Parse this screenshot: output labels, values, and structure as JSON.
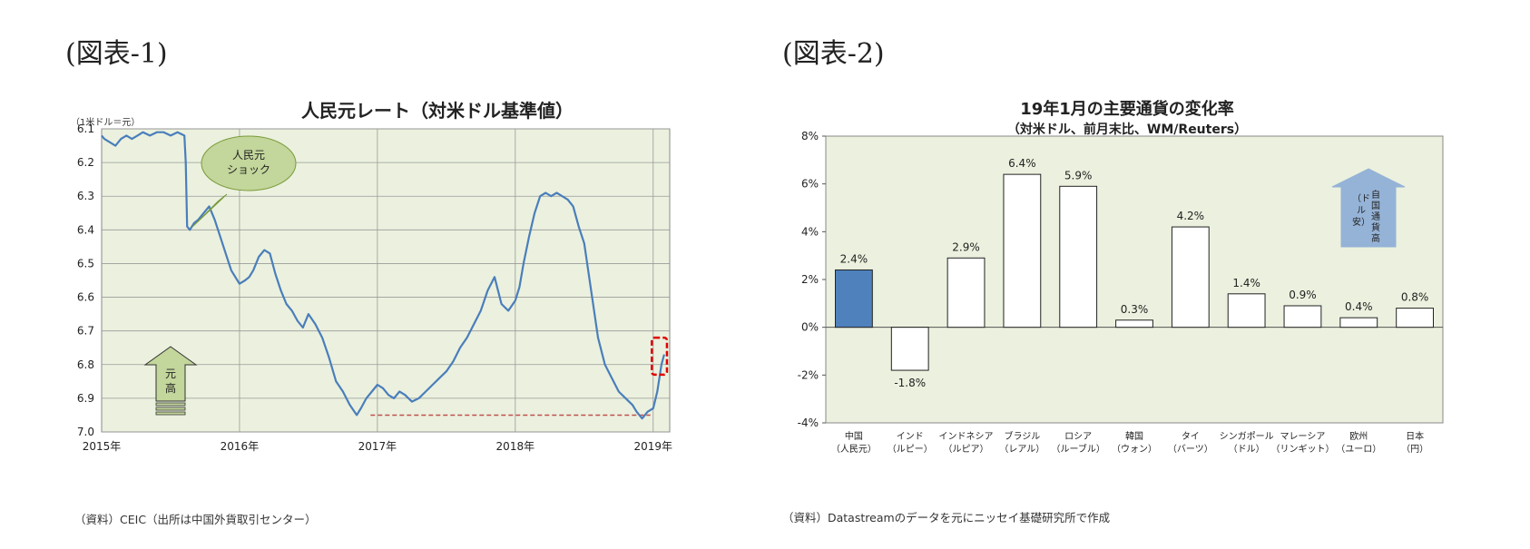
{
  "figure1": {
    "label": "(図表-1)",
    "title": "人民元レート（対米ドル基準値）",
    "unit": "（1米ドル＝元）",
    "source": "（資料）CEIC（出所は中国外貨取引センター）",
    "callout": [
      "人民元",
      "ショック"
    ],
    "arrow_label": [
      "元",
      "高"
    ],
    "colors": {
      "line": "#4a7ebb",
      "plot_bg": "#ebf1de",
      "callout_fill": "#c3d69b",
      "arrow_fill": "#c3d69b",
      "marker": "#e00000",
      "ref_line": "#c0504d"
    },
    "chart_data": {
      "type": "line",
      "x_ticks": [
        "2015年",
        "2016年",
        "2017年",
        "2018年",
        "2019年"
      ],
      "y_ticks": [
        "6.1",
        "6.2",
        "6.3",
        "6.4",
        "6.5",
        "6.6",
        "6.7",
        "6.8",
        "6.9",
        "7.0"
      ],
      "ylim": [
        6.1,
        7.0
      ],
      "y_inverted": true,
      "grid": true,
      "reference_line": {
        "y": 6.95,
        "from": 2016.95,
        "to": 2018.98
      },
      "highlight_box": {
        "x_from": 2018.99,
        "x_to": 2019.1,
        "y_from": 6.72,
        "y_to": 6.83
      },
      "series": [
        {
          "x": [
            2015.0,
            2015.02,
            2015.06,
            2015.1,
            2015.14,
            2015.18,
            2015.22,
            2015.26,
            2015.3,
            2015.35,
            2015.4,
            2015.45,
            2015.5,
            2015.55,
            2015.6,
            2015.61,
            2015.62,
            2015.64,
            2015.67,
            2015.7,
            2015.74,
            2015.78,
            2015.82,
            2015.86,
            2015.9,
            2015.94,
            2016.0,
            2016.04,
            2016.07,
            2016.1,
            2016.14,
            2016.18,
            2016.22,
            2016.26,
            2016.3,
            2016.34,
            2016.38,
            2016.42,
            2016.46,
            2016.5,
            2016.55,
            2016.6,
            2016.65,
            2016.7,
            2016.75,
            2016.8,
            2016.85,
            2016.88,
            2016.92,
            2016.96,
            2017.0,
            2017.04,
            2017.08,
            2017.12,
            2017.16,
            2017.2,
            2017.25,
            2017.3,
            2017.35,
            2017.4,
            2017.45,
            2017.5,
            2017.55,
            2017.6,
            2017.65,
            2017.7,
            2017.75,
            2017.8,
            2017.85,
            2017.9,
            2017.95,
            2018.0,
            2018.03,
            2018.06,
            2018.1,
            2018.14,
            2018.18,
            2018.22,
            2018.26,
            2018.3,
            2018.34,
            2018.38,
            2018.42,
            2018.46,
            2018.5,
            2018.55,
            2018.6,
            2018.65,
            2018.7,
            2018.75,
            2018.8,
            2018.85,
            2018.88,
            2018.92,
            2018.96,
            2019.0,
            2019.03,
            2019.06,
            2019.08
          ],
          "y": [
            6.12,
            6.13,
            6.14,
            6.15,
            6.13,
            6.12,
            6.13,
            6.12,
            6.11,
            6.12,
            6.11,
            6.11,
            6.12,
            6.11,
            6.12,
            6.2,
            6.39,
            6.4,
            6.38,
            6.37,
            6.35,
            6.33,
            6.37,
            6.42,
            6.47,
            6.52,
            6.56,
            6.55,
            6.54,
            6.52,
            6.48,
            6.46,
            6.47,
            6.53,
            6.58,
            6.62,
            6.64,
            6.67,
            6.69,
            6.65,
            6.68,
            6.72,
            6.78,
            6.85,
            6.88,
            6.92,
            6.95,
            6.93,
            6.9,
            6.88,
            6.86,
            6.87,
            6.89,
            6.9,
            6.88,
            6.89,
            6.91,
            6.9,
            6.88,
            6.86,
            6.84,
            6.82,
            6.79,
            6.75,
            6.72,
            6.68,
            6.64,
            6.58,
            6.54,
            6.62,
            6.64,
            6.61,
            6.57,
            6.5,
            6.42,
            6.35,
            6.3,
            6.29,
            6.3,
            6.29,
            6.3,
            6.31,
            6.33,
            6.39,
            6.44,
            6.58,
            6.72,
            6.8,
            6.84,
            6.88,
            6.9,
            6.92,
            6.94,
            6.96,
            6.94,
            6.93,
            6.88,
            6.8,
            6.77
          ]
        }
      ]
    }
  },
  "figure2": {
    "label": "(図表-2)",
    "title": "19年1月の主要通貨の変化率",
    "subtitle": "（対米ドル、前月末比、WM/Reuters）",
    "source": "（資料）Datastreamのデータを元にニッセイ基礎研究所で作成",
    "arrow_label": [
      "自",
      "国",
      "通",
      "貨",
      "高",
      "（ド",
      "ル",
      "安）"
    ],
    "colors": {
      "plot_bg": "#ebf1de",
      "highlight_bar": "#4f81bd",
      "bar": "#ffffff",
      "arrow_fill": "#95b3d7"
    },
    "chart_data": {
      "type": "bar",
      "categories": [
        [
          "中国",
          "（人民元）"
        ],
        [
          "インド",
          "（ルピー）"
        ],
        [
          "インドネシア",
          "（ルピア）"
        ],
        [
          "ブラジル",
          "（レアル）"
        ],
        [
          "ロシア",
          "（ルーブル）"
        ],
        [
          "韓国",
          "（ウォン）"
        ],
        [
          "タイ",
          "（バーツ）"
        ],
        [
          "シンガポール",
          "（ドル）"
        ],
        [
          "マレーシア",
          "（リンギット）"
        ],
        [
          "欧州",
          "（ユーロ）"
        ],
        [
          "日本",
          "（円）"
        ]
      ],
      "values": [
        2.4,
        -1.8,
        2.9,
        6.4,
        5.9,
        0.3,
        4.2,
        1.4,
        0.9,
        0.4,
        0.8
      ],
      "data_labels": [
        "2.4%",
        "-1.8%",
        "2.9%",
        "6.4%",
        "5.9%",
        "0.3%",
        "4.2%",
        "1.4%",
        "0.9%",
        "0.4%",
        "0.8%"
      ],
      "y_ticks": [
        "8%",
        "6%",
        "4%",
        "2%",
        "0%",
        "-2%",
        "-4%"
      ],
      "ylim": [
        -4,
        8
      ],
      "highlight_index": 0,
      "grid": false
    }
  }
}
